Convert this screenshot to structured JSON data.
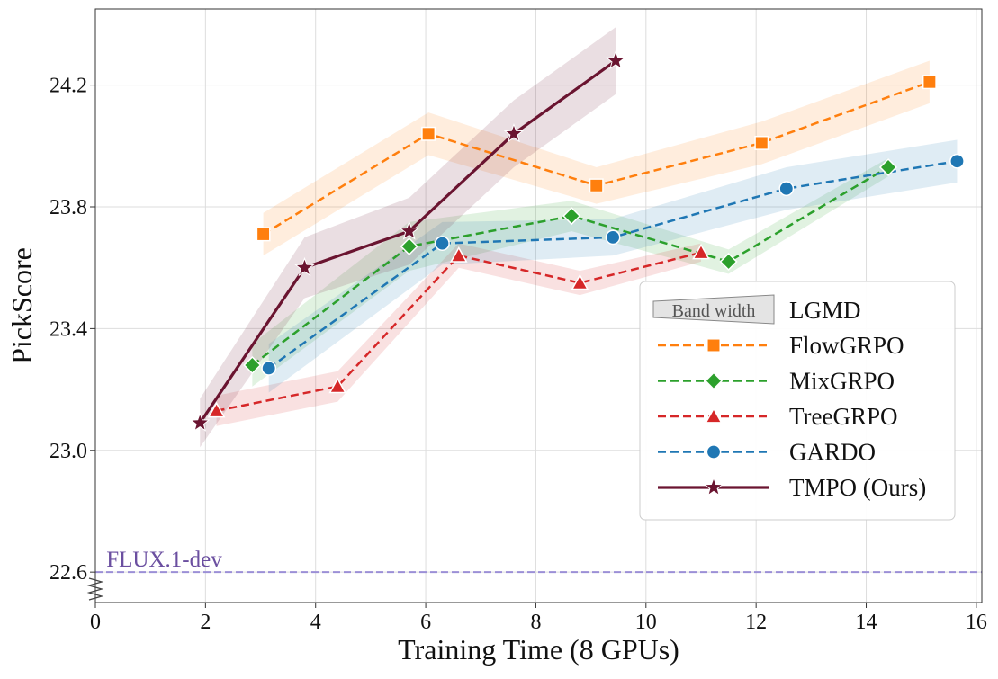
{
  "chart_data": {
    "type": "line",
    "title": "",
    "xlabel": "Training Time (8 GPUs)",
    "ylabel": "PickScore",
    "xlim": [
      0,
      16.1
    ],
    "ylim": [
      22.5,
      24.45
    ],
    "xticks": [
      0,
      2,
      4,
      6,
      8,
      10,
      12,
      14,
      16
    ],
    "yticks": [
      22.6,
      23.0,
      23.4,
      23.8,
      24.2
    ],
    "grid": true,
    "legend_position": "center-right",
    "legend_band_label": "Band width",
    "legend_band_title": "LGMD",
    "baseline": {
      "name": "FLUX.1-dev",
      "y": 22.6,
      "color": "#9b8fd6",
      "label_color": "#6b4fa0"
    },
    "series": [
      {
        "name": "FlowGRPO",
        "color": "#ff7f0e",
        "marker": "square",
        "dashed": true,
        "x": [
          3.05,
          6.05,
          9.1,
          12.1,
          15.15
        ],
        "y": [
          23.71,
          24.04,
          23.87,
          24.01,
          24.21
        ],
        "band": [
          0.07,
          0.07,
          0.06,
          0.07,
          0.07
        ]
      },
      {
        "name": "MixGRPO",
        "color": "#2ca02c",
        "marker": "diamond",
        "dashed": true,
        "x": [
          2.85,
          5.7,
          8.65,
          11.5,
          14.4
        ],
        "y": [
          23.28,
          23.67,
          23.77,
          23.62,
          23.93
        ],
        "band": [
          0.07,
          0.08,
          0.05,
          0.04,
          0.03
        ]
      },
      {
        "name": "TreeGRPO",
        "color": "#d62728",
        "marker": "triangle",
        "dashed": true,
        "x": [
          2.2,
          4.4,
          6.6,
          8.8,
          11.0
        ],
        "y": [
          23.13,
          23.21,
          23.64,
          23.55,
          23.65
        ],
        "band": [
          0.05,
          0.05,
          0.04,
          0.04,
          0.03
        ]
      },
      {
        "name": "GARDO",
        "color": "#1f77b4",
        "marker": "circle",
        "dashed": true,
        "x": [
          3.15,
          6.3,
          9.4,
          12.55,
          15.65
        ],
        "y": [
          23.27,
          23.68,
          23.7,
          23.86,
          23.95
        ],
        "band": [
          0.08,
          0.07,
          0.06,
          0.07,
          0.07
        ]
      },
      {
        "name": "TMPO (Ours)",
        "color": "#6a1430",
        "marker": "star",
        "dashed": false,
        "x": [
          1.9,
          3.8,
          5.7,
          7.6,
          9.45
        ],
        "y": [
          23.09,
          23.6,
          23.72,
          24.04,
          24.28
        ],
        "band": [
          0.08,
          0.1,
          0.11,
          0.11,
          0.11
        ]
      }
    ]
  }
}
